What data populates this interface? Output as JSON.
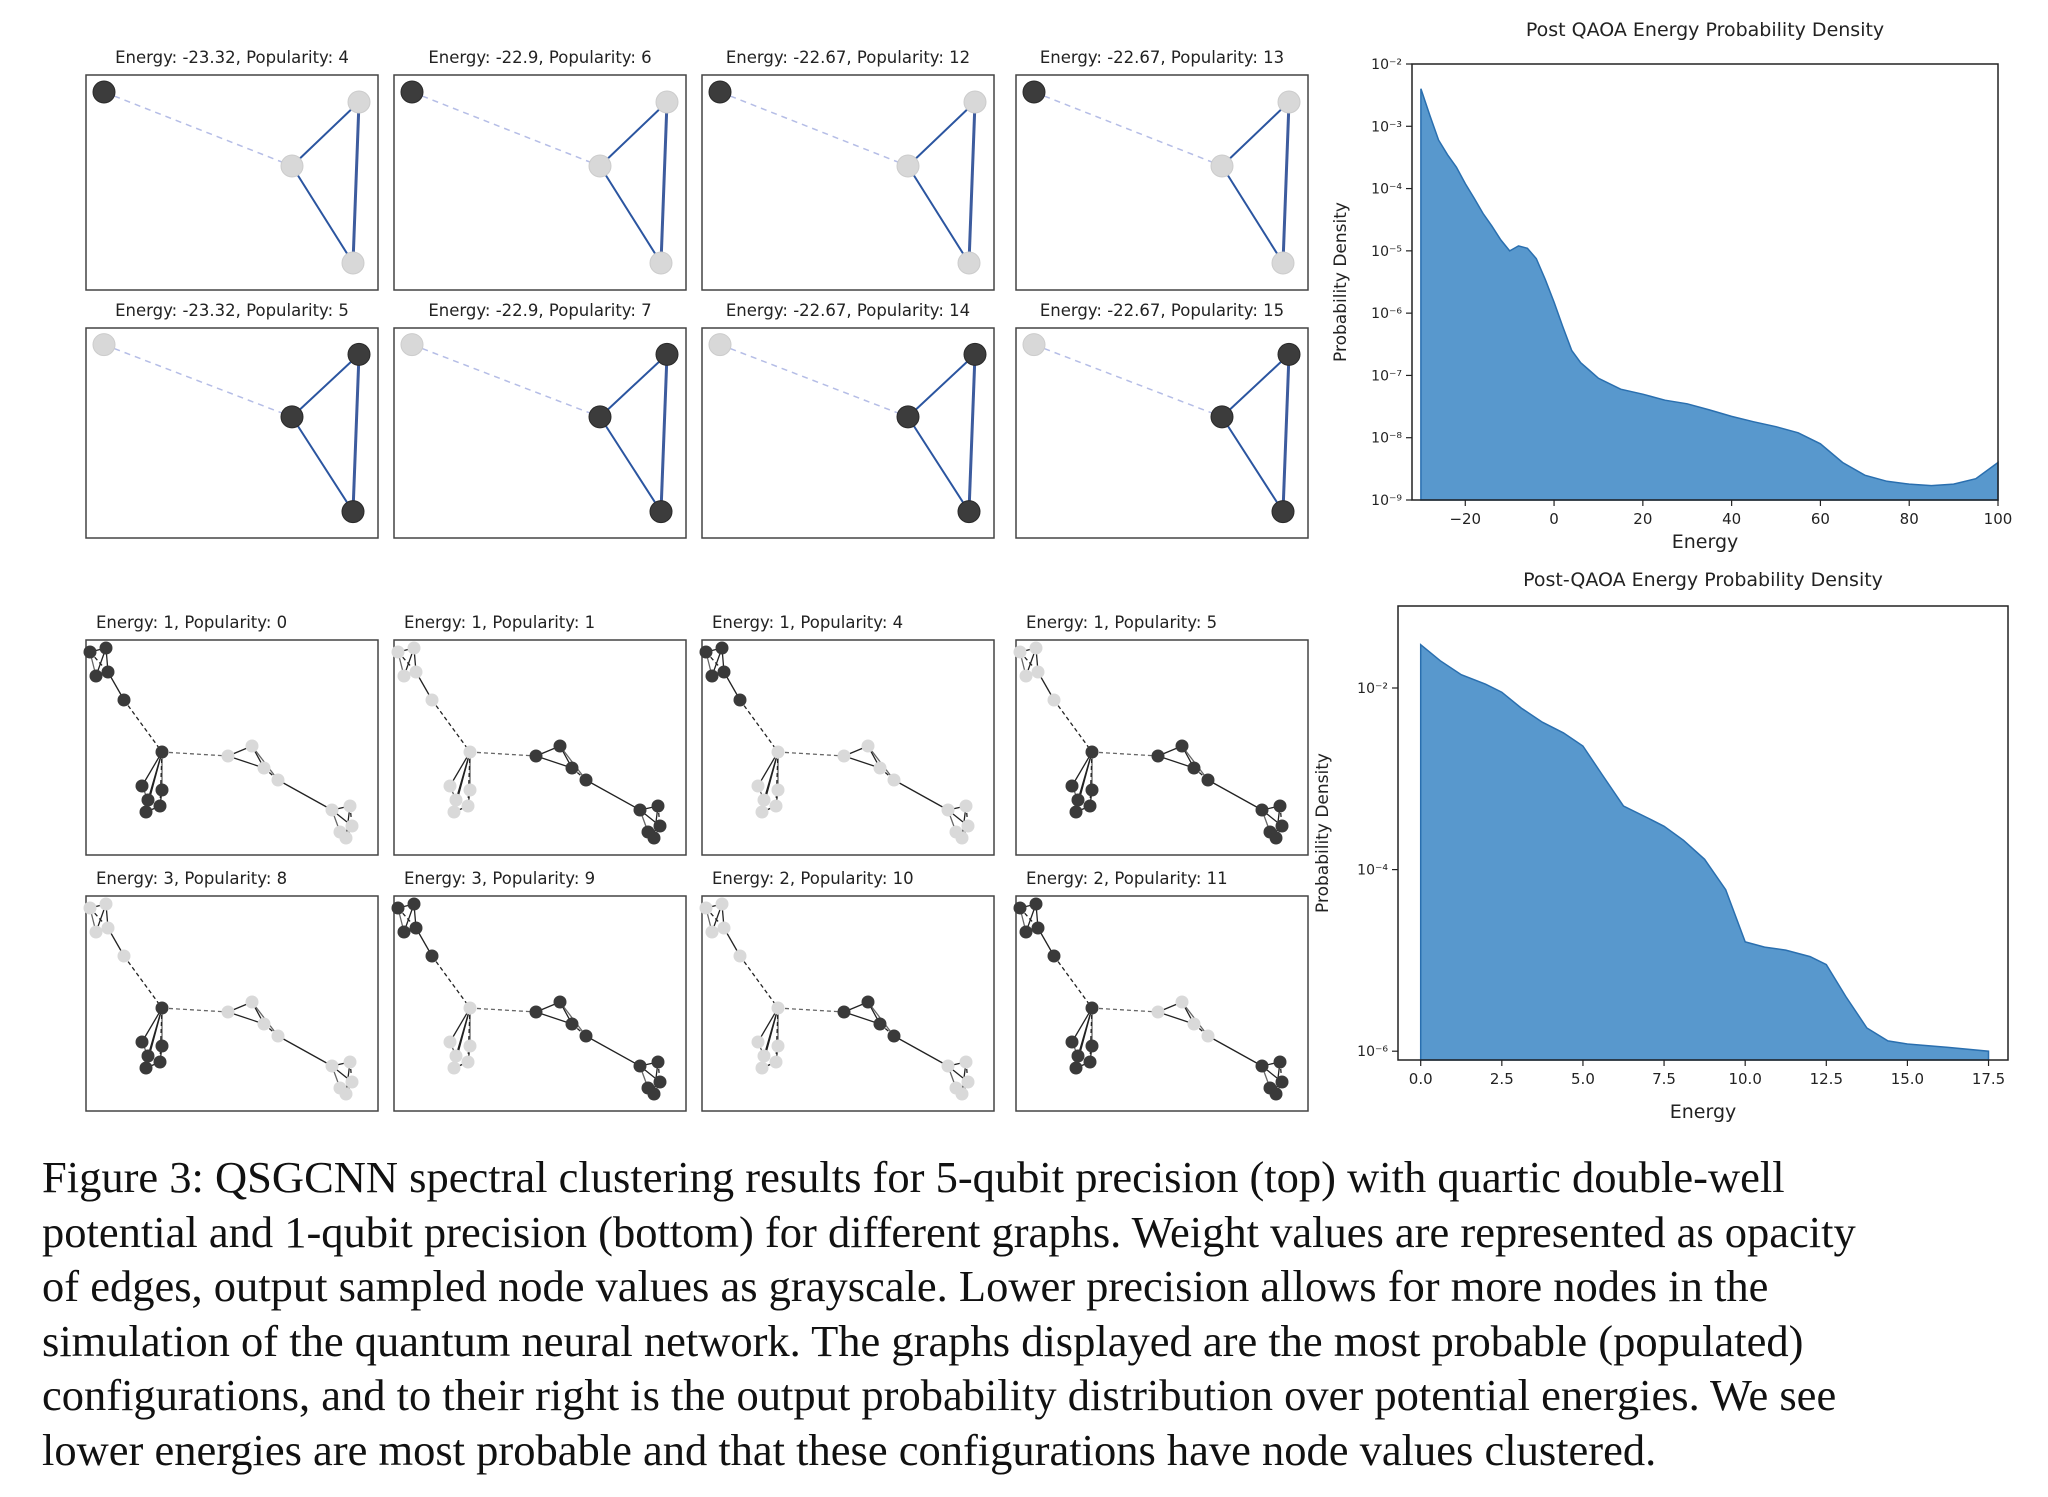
{
  "figure": {
    "top_panels": [
      {
        "title": "Energy: -23.32, Popularity: 4"
      },
      {
        "title": "Energy: -22.9, Popularity: 6"
      },
      {
        "title": "Energy: -22.67, Popularity: 12"
      },
      {
        "title": "Energy: -22.67, Popularity: 13"
      },
      {
        "title": "Energy: -23.32, Popularity: 5"
      },
      {
        "title": "Energy: -22.9, Popularity: 7"
      },
      {
        "title": "Energy: -22.67, Popularity: 14"
      },
      {
        "title": "Energy: -22.67, Popularity: 15"
      }
    ],
    "bottom_panels": [
      {
        "title": "Energy: 1, Popularity: 0"
      },
      {
        "title": "Energy: 1, Popularity: 1"
      },
      {
        "title": "Energy: 1, Popularity: 4"
      },
      {
        "title": "Energy: 1, Popularity: 5"
      },
      {
        "title": "Energy: 3, Popularity: 8"
      },
      {
        "title": "Energy: 3, Popularity: 9"
      },
      {
        "title": "Energy: 2, Popularity: 10"
      },
      {
        "title": "Energy: 2, Popularity: 11"
      }
    ]
  },
  "chart_data": [
    {
      "type": "area",
      "title": "Post QAOA Energy Probability Density",
      "xlabel": "Energy",
      "ylabel": "Probability Density",
      "yscale": "log",
      "xlim": [
        -32,
        100
      ],
      "ylim": [
        1e-09,
        0.01
      ],
      "xticks": [
        -20,
        0,
        20,
        40,
        60,
        80,
        100
      ],
      "xtick_labels": [
        "−20",
        "0",
        "20",
        "40",
        "60",
        "80",
        "100"
      ],
      "yticks": [
        1e-09,
        1e-08,
        1e-07,
        1e-06,
        1e-05,
        0.0001,
        0.001,
        0.01
      ],
      "ytick_labels": [
        "10⁻⁹",
        "10⁻⁸",
        "10⁻⁷",
        "10⁻⁶",
        "10⁻⁵",
        "10⁻⁴",
        "10⁻³",
        "10⁻²"
      ],
      "color": "#3b86c4",
      "x": [
        -30,
        -28,
        -26,
        -24,
        -22,
        -20,
        -18,
        -16,
        -14,
        -12,
        -10,
        -8,
        -6,
        -4,
        -2,
        0,
        2,
        4,
        6,
        8,
        10,
        15,
        20,
        25,
        30,
        35,
        40,
        45,
        50,
        55,
        60,
        65,
        70,
        75,
        80,
        85,
        90,
        95,
        100
      ],
      "y": [
        0.004,
        0.0015,
        0.0006,
        0.00035,
        0.00022,
        0.00012,
        7e-05,
        4e-05,
        2.5e-05,
        1.5e-05,
        1e-05,
        1.2e-05,
        1.1e-05,
        7.5e-06,
        3.5e-06,
        1.5e-06,
        6e-07,
        2.5e-07,
        1.6e-07,
        1.2e-07,
        9e-08,
        6e-08,
        5e-08,
        4e-08,
        3.5e-08,
        2.8e-08,
        2.2e-08,
        1.8e-08,
        1.5e-08,
        1.2e-08,
        8e-09,
        4e-09,
        2.5e-09,
        2e-09,
        1.8e-09,
        1.7e-09,
        1.8e-09,
        2.2e-09,
        4e-09
      ]
    },
    {
      "type": "area",
      "title": "Post-QAOA Energy Probability Density",
      "xlabel": "Energy",
      "ylabel": "Probability Density",
      "yscale": "log",
      "xlim": [
        -0.7,
        18.1
      ],
      "ylim": [
        8e-07,
        0.08
      ],
      "xticks": [
        0,
        2.5,
        5,
        7.5,
        10,
        12.5,
        15,
        17.5
      ],
      "xtick_labels": [
        "0.0",
        "2.5",
        "5.0",
        "7.5",
        "10.0",
        "12.5",
        "15.0",
        "17.5"
      ],
      "yticks": [
        0.01,
        0.0001,
        1e-06
      ],
      "ytick_labels": [
        "10⁻²",
        "10⁻⁴",
        "10⁻⁶"
      ],
      "color": "#3b86c4",
      "x": [
        0,
        0.6,
        1.25,
        2,
        2.5,
        3.1,
        3.75,
        4.4,
        5,
        5.6,
        6.25,
        7,
        7.5,
        8.1,
        8.75,
        9.4,
        10,
        10.6,
        11.25,
        12,
        12.5,
        13.1,
        13.75,
        14.4,
        15,
        16.25,
        17.5
      ],
      "y": [
        0.03,
        0.02,
        0.014,
        0.011,
        0.009,
        0.006,
        0.0042,
        0.0032,
        0.0023,
        0.0011,
        0.0005,
        0.00037,
        0.0003,
        0.00021,
        0.00013,
        6e-05,
        1.6e-05,
        1.4e-05,
        1.3e-05,
        1.1e-05,
        9e-06,
        4e-06,
        1.8e-06,
        1.3e-06,
        1.2e-06,
        1.1e-06,
        1e-06
      ]
    }
  ],
  "caption": {
    "line1_prefix": "Figure 3: ",
    "line1_sc": "QSGCNN",
    "line1_rest": " spectral clustering results for 5-qubit precision (top) with quartic double-well",
    "line2": "potential and 1-qubit precision (bottom) for different graphs. Weight values are represented as opacity",
    "line3": "of edges, output sampled node values as grayscale. Lower precision allows for more nodes in the",
    "line4": "simulation of the quantum neural network. The graphs displayed are the most probable (populated)",
    "line5": "configurations, and to their right is the output probability distribution over potential energies. We see",
    "line6": "lower energies are most probable and that these configurations have node values clustered."
  }
}
